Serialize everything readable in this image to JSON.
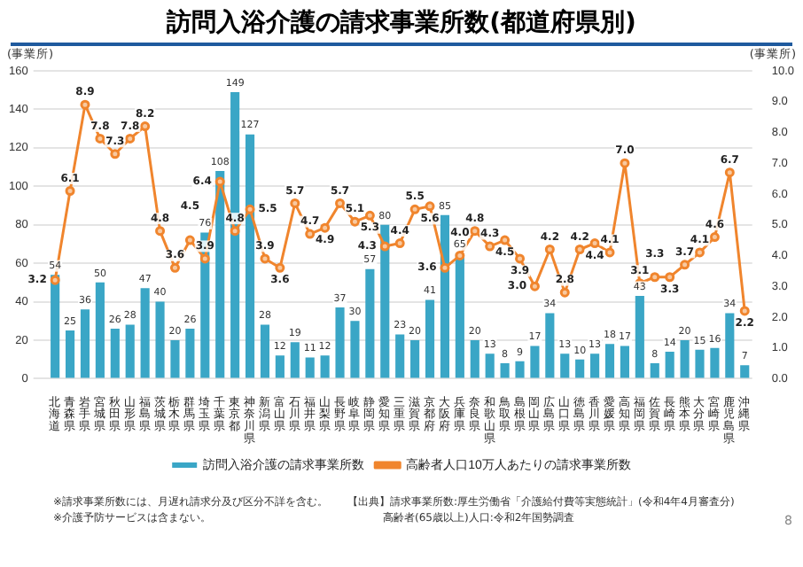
{
  "chart_data": {
    "type": "bar",
    "title": "訪問入浴介護の請求事業所数(都道府県別)",
    "ylabel": "(事業所)",
    "y2label": "(事業所)",
    "categories": [
      "北海道",
      "青森県",
      "岩手県",
      "宮城県",
      "秋田県",
      "山形県",
      "福島県",
      "茨城県",
      "栃木県",
      "群馬県",
      "埼玉県",
      "千葉県",
      "東京都",
      "神奈川県",
      "新潟県",
      "富山県",
      "石川県",
      "福井県",
      "山梨県",
      "長野県",
      "岐阜県",
      "静岡県",
      "愛知県",
      "三重県",
      "滋賀県",
      "京都府",
      "大阪府",
      "兵庫県",
      "奈良県",
      "和歌山県",
      "鳥取県",
      "島根県",
      "岡山県",
      "広島県",
      "山口県",
      "徳島県",
      "香川県",
      "愛媛県",
      "高知県",
      "福岡県",
      "佐賀県",
      "長崎県",
      "熊本県",
      "大分県",
      "宮崎県",
      "鹿児島県",
      "沖縄県"
    ],
    "series": [
      {
        "name": "訪問入浴介護の請求事業所数",
        "type": "bar",
        "color": "#3aa6c6",
        "values": [
          54,
          25,
          36,
          50,
          26,
          28,
          47,
          40,
          20,
          26,
          76,
          108,
          149,
          127,
          28,
          12,
          19,
          11,
          12,
          37,
          30,
          57,
          80,
          23,
          20,
          41,
          85,
          65,
          20,
          13,
          8,
          9,
          17,
          34,
          13,
          10,
          13,
          18,
          17,
          43,
          8,
          14,
          20,
          15,
          16,
          34,
          7
        ]
      },
      {
        "name": "高齢者人口10万人あたりの請求事業所数",
        "type": "line",
        "axis": "y2",
        "color": "#f0852d",
        "values": [
          3.2,
          6.1,
          8.9,
          7.8,
          7.3,
          7.8,
          8.2,
          4.8,
          3.6,
          4.5,
          3.9,
          6.4,
          4.8,
          5.5,
          3.9,
          3.6,
          5.7,
          4.7,
          4.9,
          5.7,
          5.1,
          5.3,
          4.3,
          4.4,
          5.5,
          5.6,
          3.6,
          4.0,
          4.8,
          4.3,
          4.5,
          3.9,
          3.0,
          4.2,
          2.8,
          4.2,
          4.4,
          4.1,
          7.0,
          3.1,
          3.3,
          3.3,
          3.7,
          4.1,
          4.6,
          6.7,
          2.2
        ],
        "value_labels": [
          "3.2",
          "6.1",
          "8.9",
          "7.8",
          "7.3",
          "7.8",
          "8.2",
          "4.8",
          "3.6",
          "4.5",
          "3.9",
          "6.4",
          "4.8",
          "5.5",
          "3.9",
          "3.6",
          "5.7",
          "4.7",
          "4.9",
          "5.7",
          "5.1",
          "5.3",
          "4.3",
          "4.4",
          "5.5",
          "5.6",
          "3.6",
          "4.0",
          "4.8",
          "4.3",
          "4.5",
          "3.9",
          "3.0",
          "4.2",
          "2.8",
          "4.2",
          "4.4",
          "4.1",
          "7.0",
          "3.1",
          "3.3",
          "3.3",
          "3.7",
          "4.1",
          "4.6",
          "6.7",
          "2.2"
        ]
      }
    ],
    "ylim": [
      0,
      160
    ],
    "yticks": [
      0,
      20,
      40,
      60,
      80,
      100,
      120,
      140,
      160
    ],
    "y2lim": [
      0,
      10
    ],
    "y2ticks": [
      {
        "value": 0,
        "label": "0.0"
      },
      {
        "value": 1,
        "label": "1.0"
      },
      {
        "value": 2,
        "label": "2.0"
      },
      {
        "value": 3,
        "label": "3.0"
      },
      {
        "value": 4,
        "label": "4.0"
      },
      {
        "value": 5,
        "label": "5.0"
      },
      {
        "value": 6,
        "label": "6.0"
      },
      {
        "value": 7,
        "label": "7.0"
      },
      {
        "value": 8,
        "label": "8.0"
      },
      {
        "value": 9,
        "label": "9.0"
      },
      {
        "value": 10,
        "label": "10.0"
      }
    ],
    "grid": "y",
    "legend": "bottom",
    "marker": "circle",
    "line_style": "solid",
    "data_labels": true,
    "annotations": [
      "※請求事業所数には、月遅れ請求分及び区分不詳を含む。",
      "※介護予防サービスは含まない。",
      "【出典】請求事業所数:厚生労働省「介護給付費等実態統計」(令和4年4月審査分)",
      "高齢者(65歳以上)人口:令和2年国勢調査",
      "8"
    ]
  }
}
